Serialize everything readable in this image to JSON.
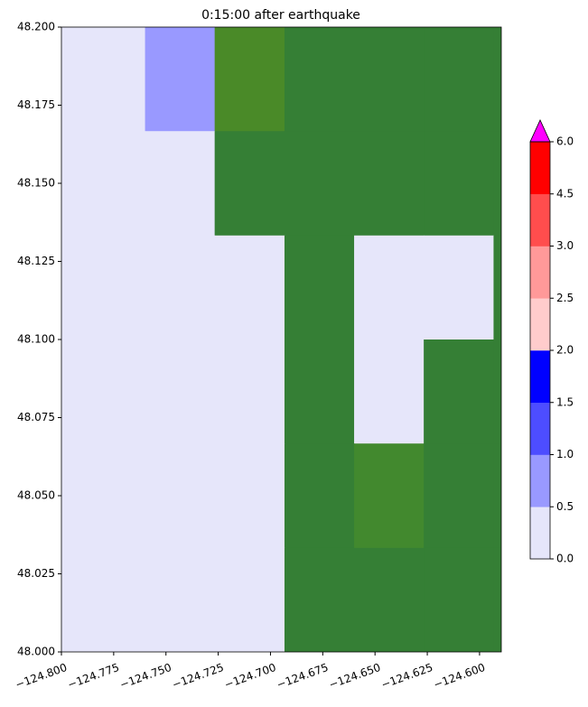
{
  "chart_data": {
    "type": "heatmap",
    "title": "0:15:00 after earthquake",
    "x_edges": [
      -124.8,
      -124.76,
      -124.7267,
      -124.6933,
      -124.66,
      -124.6267,
      -124.5933,
      -124.5896
    ],
    "y_edges": [
      48.2,
      48.1667,
      48.1333,
      48.1,
      48.0667,
      48.0333,
      48.0
    ],
    "values": [
      [
        0.25,
        0.75,
        null,
        null,
        null,
        null,
        null
      ],
      [
        0.25,
        0.25,
        null,
        null,
        null,
        null,
        null
      ],
      [
        0.25,
        0.25,
        0.25,
        null,
        0.25,
        0.25,
        null
      ],
      [
        0.25,
        0.25,
        0.25,
        null,
        0.25,
        null,
        null
      ],
      [
        0.25,
        0.25,
        0.25,
        null,
        null,
        null,
        null
      ],
      [
        0.25,
        0.25,
        0.25,
        null,
        null,
        null,
        null
      ]
    ],
    "land": [
      [
        null,
        null,
        "#4a8a28",
        "#357f35",
        "#357f35",
        "#357f35",
        "#357f35"
      ],
      [
        null,
        null,
        "#357f35",
        "#357f35",
        "#357f35",
        "#357f35",
        "#357f35"
      ],
      [
        null,
        null,
        null,
        "#357f35",
        null,
        null,
        "#357f35"
      ],
      [
        null,
        null,
        null,
        "#357f35",
        null,
        "#357f35",
        "#357f35"
      ],
      [
        null,
        null,
        null,
        "#357f35",
        "#42892e",
        "#357f35",
        "#357f35"
      ],
      [
        null,
        null,
        null,
        "#357f35",
        "#357f35",
        "#357f35",
        "#357f35"
      ]
    ],
    "xlim": [
      -124.8,
      -124.5896
    ],
    "ylim": [
      48.0,
      48.2
    ],
    "xticks": [
      {
        "value": -124.8,
        "label": "−124.800"
      },
      {
        "value": -124.775,
        "label": "−124.775"
      },
      {
        "value": -124.75,
        "label": "−124.750"
      },
      {
        "value": -124.725,
        "label": "−124.725"
      },
      {
        "value": -124.7,
        "label": "−124.700"
      },
      {
        "value": -124.675,
        "label": "−124.675"
      },
      {
        "value": -124.65,
        "label": "−124.650"
      },
      {
        "value": -124.625,
        "label": "−124.625"
      },
      {
        "value": -124.6,
        "label": "−124.600"
      }
    ],
    "yticks": [
      {
        "value": 48.0,
        "label": "48.000"
      },
      {
        "value": 48.025,
        "label": "48.025"
      },
      {
        "value": 48.05,
        "label": "48.050"
      },
      {
        "value": 48.075,
        "label": "48.075"
      },
      {
        "value": 48.1,
        "label": "48.100"
      },
      {
        "value": 48.125,
        "label": "48.125"
      },
      {
        "value": 48.15,
        "label": "48.150"
      },
      {
        "value": 48.175,
        "label": "48.175"
      },
      {
        "value": 48.2,
        "label": "48.200"
      }
    ],
    "colorbar": {
      "levels": [
        0,
        0.5,
        1,
        1.5,
        2,
        2.5,
        3,
        4.5,
        6
      ],
      "colors": [
        "#e6e6fa",
        "#9999ff",
        "#4d4dff",
        "#0000ff",
        "#ffcccc",
        "#ff9999",
        "#ff4d4d",
        "#ff0000"
      ],
      "extend_color": "#ff00ff",
      "ticks": [
        {
          "value": 0,
          "label": "0.0"
        },
        0.5,
        {
          "value": 1,
          "label": "1.0"
        },
        1.5,
        {
          "value": 2,
          "label": "2.0"
        },
        2.5,
        {
          "value": 3,
          "label": "3.0"
        },
        4.5,
        {
          "value": 6,
          "label": "6.0"
        }
      ]
    }
  }
}
